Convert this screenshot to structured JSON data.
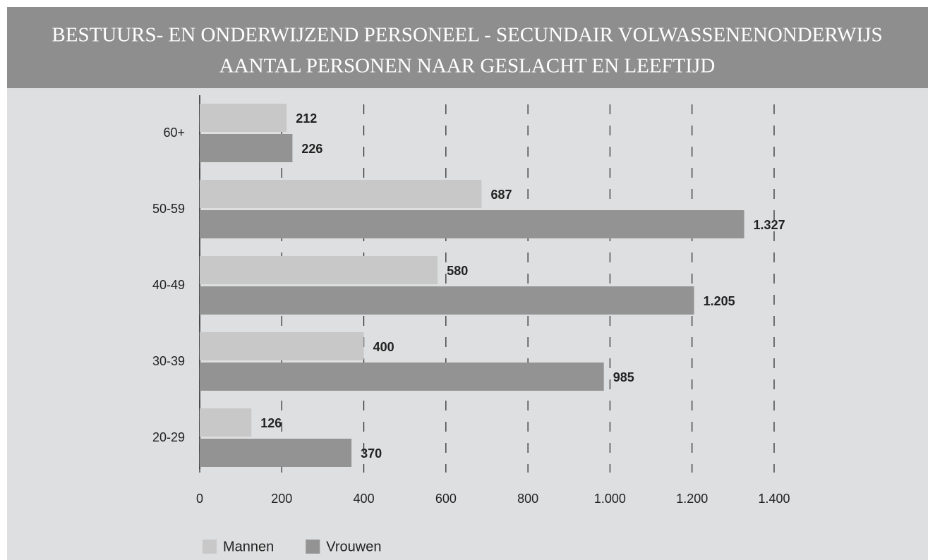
{
  "chart_data": {
    "type": "hbar",
    "title": "BESTUURS- EN ONDERWIJZEND PERSONEEL - SECUNDAIR VOLWASSENENONDERWIJS",
    "subtitle": "AANTAL PERSONEN NAAR GESLACHT EN LEEFTIJD",
    "categories": [
      "60+",
      "50-59",
      "40-49",
      "30-39",
      "20-29"
    ],
    "series": [
      {
        "name": "Mannen",
        "color": "#c8c8c8",
        "values": [
          212,
          687,
          580,
          400,
          126
        ]
      },
      {
        "name": "Vrouwen",
        "color": "#939393",
        "values": [
          226,
          1327,
          1205,
          985,
          370
        ],
        "value_labels": [
          "226",
          "1.327",
          "1.205",
          "985",
          "370"
        ]
      }
    ],
    "xlim": [
      0,
      1400
    ],
    "xticks": [
      0,
      200,
      400,
      600,
      800,
      {
        "value": 1000,
        "label": "1.000"
      },
      {
        "value": 1200,
        "label": "1.200"
      },
      {
        "value": 1400,
        "label": "1.400"
      }
    ],
    "grid": true
  }
}
